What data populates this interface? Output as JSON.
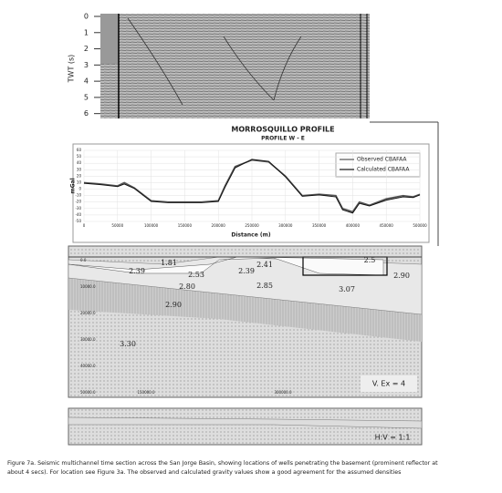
{
  "seismic": {
    "y_label": "TWT (s)",
    "yticks": [
      0,
      1,
      2,
      3,
      4,
      5,
      6
    ],
    "ylim": [
      0,
      6.3
    ]
  },
  "profile_title": "MORROSQUILLO PROFILE",
  "profile_subtitle": "PROFILE W - E",
  "chart_data": {
    "type": "line",
    "y_label": "mGal",
    "x_label": "Distance (m)",
    "x": [
      0,
      25000,
      50000,
      60000,
      75000,
      100000,
      125000,
      150000,
      175000,
      200000,
      210000,
      225000,
      250000,
      275000,
      300000,
      325000,
      350000,
      375000,
      385000,
      400000,
      410000,
      425000,
      450000,
      475000,
      490000,
      500000
    ],
    "series": [
      {
        "name": "Observed CBAFAA",
        "color": "#555555",
        "values": [
          10,
          8,
          5,
          10,
          2,
          -18,
          -20,
          -20,
          -20,
          -18,
          5,
          35,
          45,
          42,
          20,
          -10,
          -8,
          -10,
          -30,
          -35,
          -20,
          -25,
          -15,
          -10,
          -12,
          -8
        ]
      },
      {
        "name": "Calculated CBAFAA",
        "color": "#111111",
        "values": [
          9,
          7,
          4,
          8,
          1,
          -19,
          -21,
          -21,
          -21,
          -19,
          3,
          33,
          46,
          43,
          19,
          -11,
          -9,
          -12,
          -32,
          -37,
          -22,
          -26,
          -17,
          -12,
          -13,
          -9
        ]
      }
    ],
    "xlim": [
      0,
      500000
    ],
    "xticks": [
      0,
      50000,
      100000,
      150000,
      200000,
      250000,
      300000,
      350000,
      400000,
      450000,
      500000
    ],
    "ylim": [
      -50,
      60
    ],
    "yticks": [
      -50,
      -40,
      -30,
      -20,
      -10,
      0,
      10,
      20,
      30,
      40,
      50,
      60
    ],
    "grid": true
  },
  "model": {
    "densities": [
      "1.81",
      "2.39",
      "2.53",
      "2.39",
      "2.41",
      "2.5",
      "2.80",
      "2.85",
      "3.07",
      "2.90",
      "3.30",
      "2.90"
    ],
    "depth_labels": [
      "0.0",
      "10000.0",
      "20000.0",
      "30000.0",
      "40000.0",
      "50000.0"
    ],
    "distance_labels": [
      "150000.0",
      "300000.0"
    ],
    "exaggeration": "V. Ex = 4"
  },
  "lower_model": {
    "ratio": "H:V = 1:1"
  },
  "caption": [
    "Figure 7a. Seismic multichannel time section across the San Jorge Basin, showing locations of wells penetrating the basement (prominent reflector at",
    "about 4 secs). For location see Figure 3a. The observed and calculated gravity values show a good agreement for the assumed densities"
  ]
}
